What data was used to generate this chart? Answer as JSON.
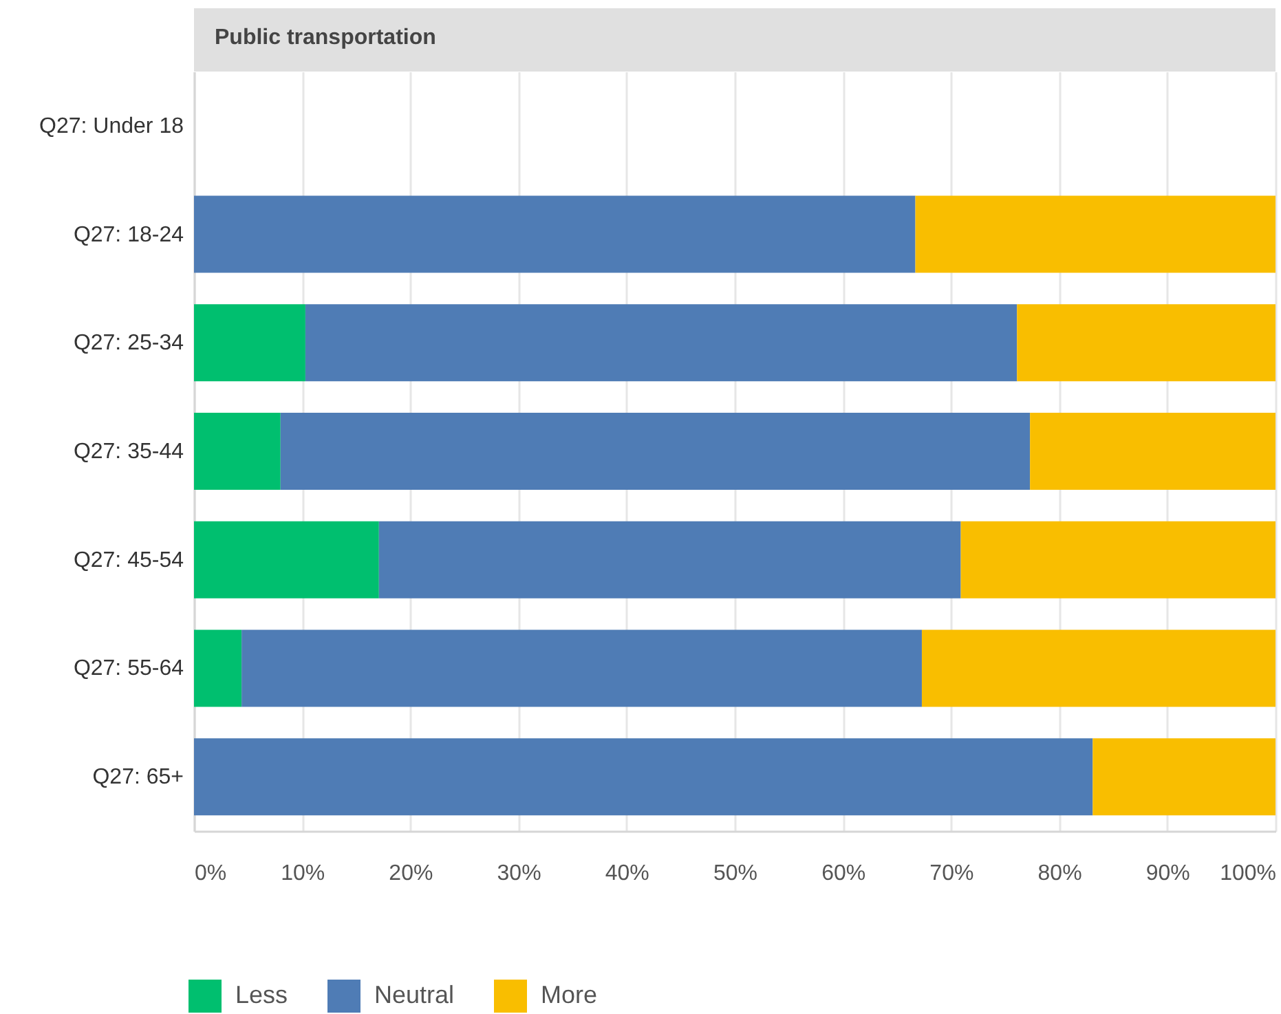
{
  "chart_data": {
    "type": "bar",
    "orientation": "horizontal",
    "stacked": true,
    "title": "Public transportation",
    "categories": [
      "Q27: Under 18",
      "Q27: 18-24",
      "Q27: 25-34",
      "Q27: 35-44",
      "Q27: 45-54",
      "Q27: 55-64",
      "Q27: 65+"
    ],
    "series": [
      {
        "name": "Less",
        "color": "#00bf6f",
        "values": [
          null,
          null,
          10.3,
          8,
          17.1,
          4.4,
          null
        ]
      },
      {
        "name": "Neutral",
        "color": "#4f7cb5",
        "values": [
          null,
          66.7,
          65.8,
          69.3,
          53.8,
          62.9,
          83.1
        ]
      },
      {
        "name": "More",
        "color": "#f9be00",
        "values": [
          null,
          33.3,
          23.9,
          22.7,
          29.1,
          32.7,
          16.9
        ]
      }
    ],
    "xlim": [
      0,
      100
    ],
    "xticks": [
      {
        "value": 0,
        "label": "0%"
      },
      {
        "value": 10,
        "label": "10%"
      },
      {
        "value": 20,
        "label": "20%"
      },
      {
        "value": 30,
        "label": "30%"
      },
      {
        "value": 40,
        "label": "40%"
      },
      {
        "value": 50,
        "label": "50%"
      },
      {
        "value": 60,
        "label": "60%"
      },
      {
        "value": 70,
        "label": "70%"
      },
      {
        "value": 80,
        "label": "80%"
      },
      {
        "value": 90,
        "label": "90%"
      },
      {
        "value": 100,
        "label": "100%"
      }
    ],
    "grid": "x",
    "legend": "bottom left"
  }
}
